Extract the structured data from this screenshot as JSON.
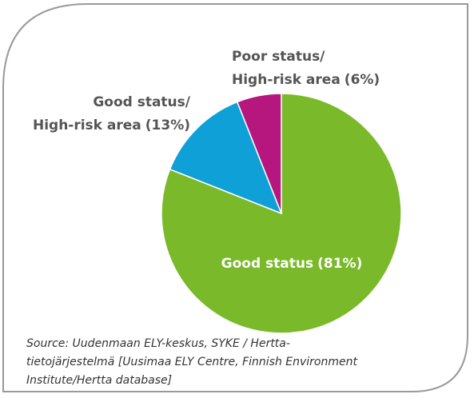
{
  "chart_data": {
    "type": "pie",
    "categories": [
      [
        "Good status"
      ],
      [
        "Good status/",
        "High-risk area"
      ],
      [
        "Poor status/",
        "High-risk area"
      ]
    ],
    "values": [
      81,
      13,
      6
    ],
    "value_labels": [
      "(81%)",
      "(13%)",
      "(6%)"
    ],
    "colors": [
      "#7ab929",
      "#0fa0d8",
      "#b5177f"
    ],
    "source": [
      "Source: Uudenmaan ELY-keskus, SYKE / Hertta-",
      "tietojärjestelmä [Uusimaa ELY Centre, Finnish Environment",
      "Institute/Hertta database]"
    ]
  }
}
